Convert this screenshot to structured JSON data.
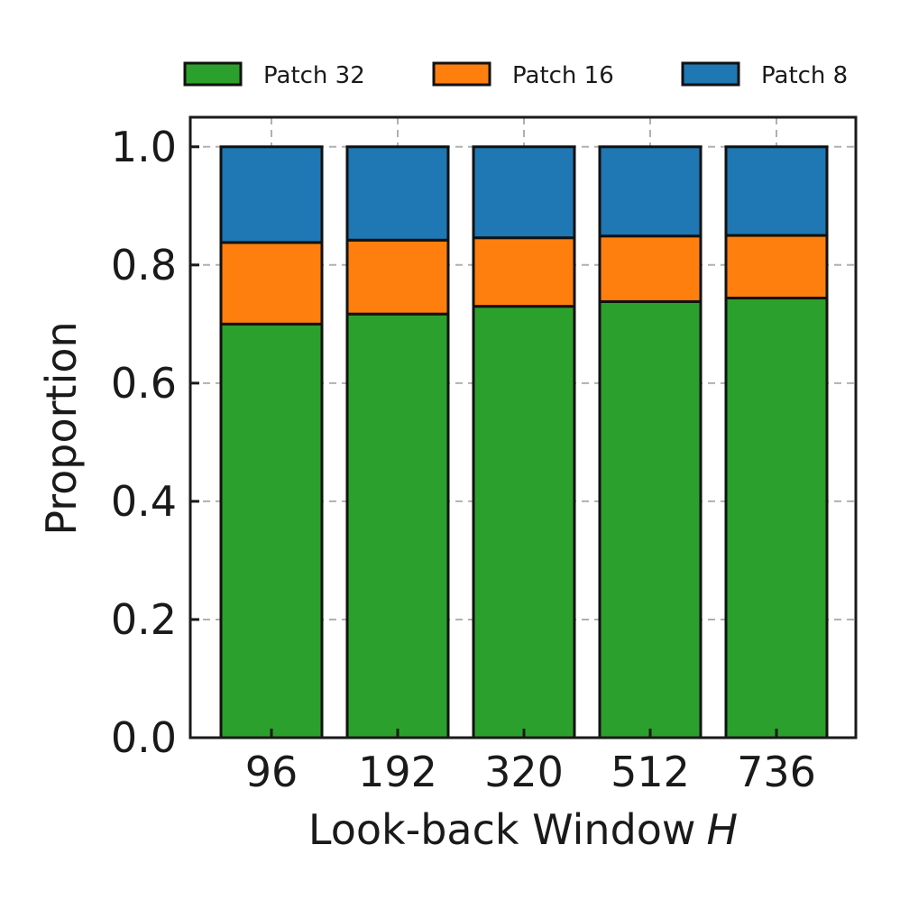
{
  "chart_data": {
    "type": "bar",
    "stacked": true,
    "categories": [
      "96",
      "192",
      "320",
      "512",
      "736"
    ],
    "series": [
      {
        "name": "Patch 32",
        "color": "#2ca02c",
        "values": [
          0.7,
          0.717,
          0.73,
          0.738,
          0.744
        ]
      },
      {
        "name": "Patch 16",
        "color": "#ff7f0e",
        "values": [
          0.138,
          0.125,
          0.116,
          0.111,
          0.106
        ]
      },
      {
        "name": "Patch 8",
        "color": "#1f77b4",
        "values": [
          0.162,
          0.158,
          0.154,
          0.151,
          0.15
        ]
      }
    ],
    "title": "",
    "xlabel": "Look-back Window",
    "xlabel_var": "H",
    "ylabel": "Proportion",
    "ylim": [
      0,
      1.05
    ],
    "yticks": [
      "0.0",
      "0.2",
      "0.4",
      "0.6",
      "0.8",
      "1.0"
    ],
    "ytick_values": [
      0,
      0.2,
      0.4,
      0.6,
      0.8,
      1.0
    ],
    "grid": true,
    "legend": {
      "placement": "top",
      "order": [
        "Patch 32",
        "Patch 16",
        "Patch 8"
      ]
    }
  }
}
